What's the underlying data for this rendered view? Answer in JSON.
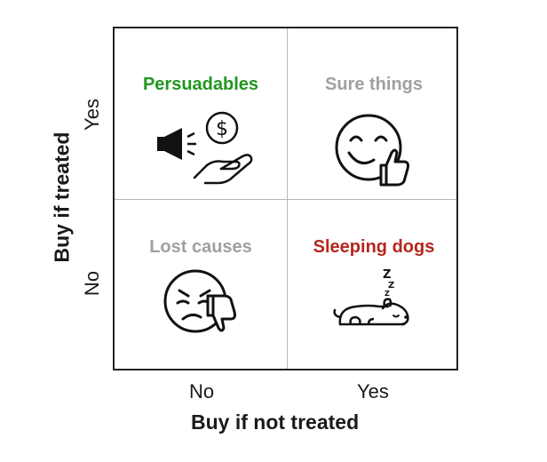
{
  "quadrants": {
    "top_left": {
      "label": "Persuadables",
      "color": "#22961f",
      "icon": "megaphone-coin-hand-icon"
    },
    "top_right": {
      "label": "Sure things",
      "color": "#a0a0a0",
      "icon": "smiling-thumbs-up-icon"
    },
    "bottom_left": {
      "label": "Lost causes",
      "color": "#a0a0a0",
      "icon": "sad-thumbs-down-icon"
    },
    "bottom_right": {
      "label": "Sleeping dogs",
      "color": "#b5261e",
      "icon": "sleeping-dog-icon"
    }
  },
  "x_axis": {
    "title": "Buy if not treated",
    "ticks": [
      "No",
      "Yes"
    ]
  },
  "y_axis": {
    "title": "Buy if treated",
    "ticks": [
      "No",
      "Yes"
    ]
  },
  "icon_glyphs": {
    "coin_symbol": "$",
    "sleep_symbol": "Z"
  }
}
